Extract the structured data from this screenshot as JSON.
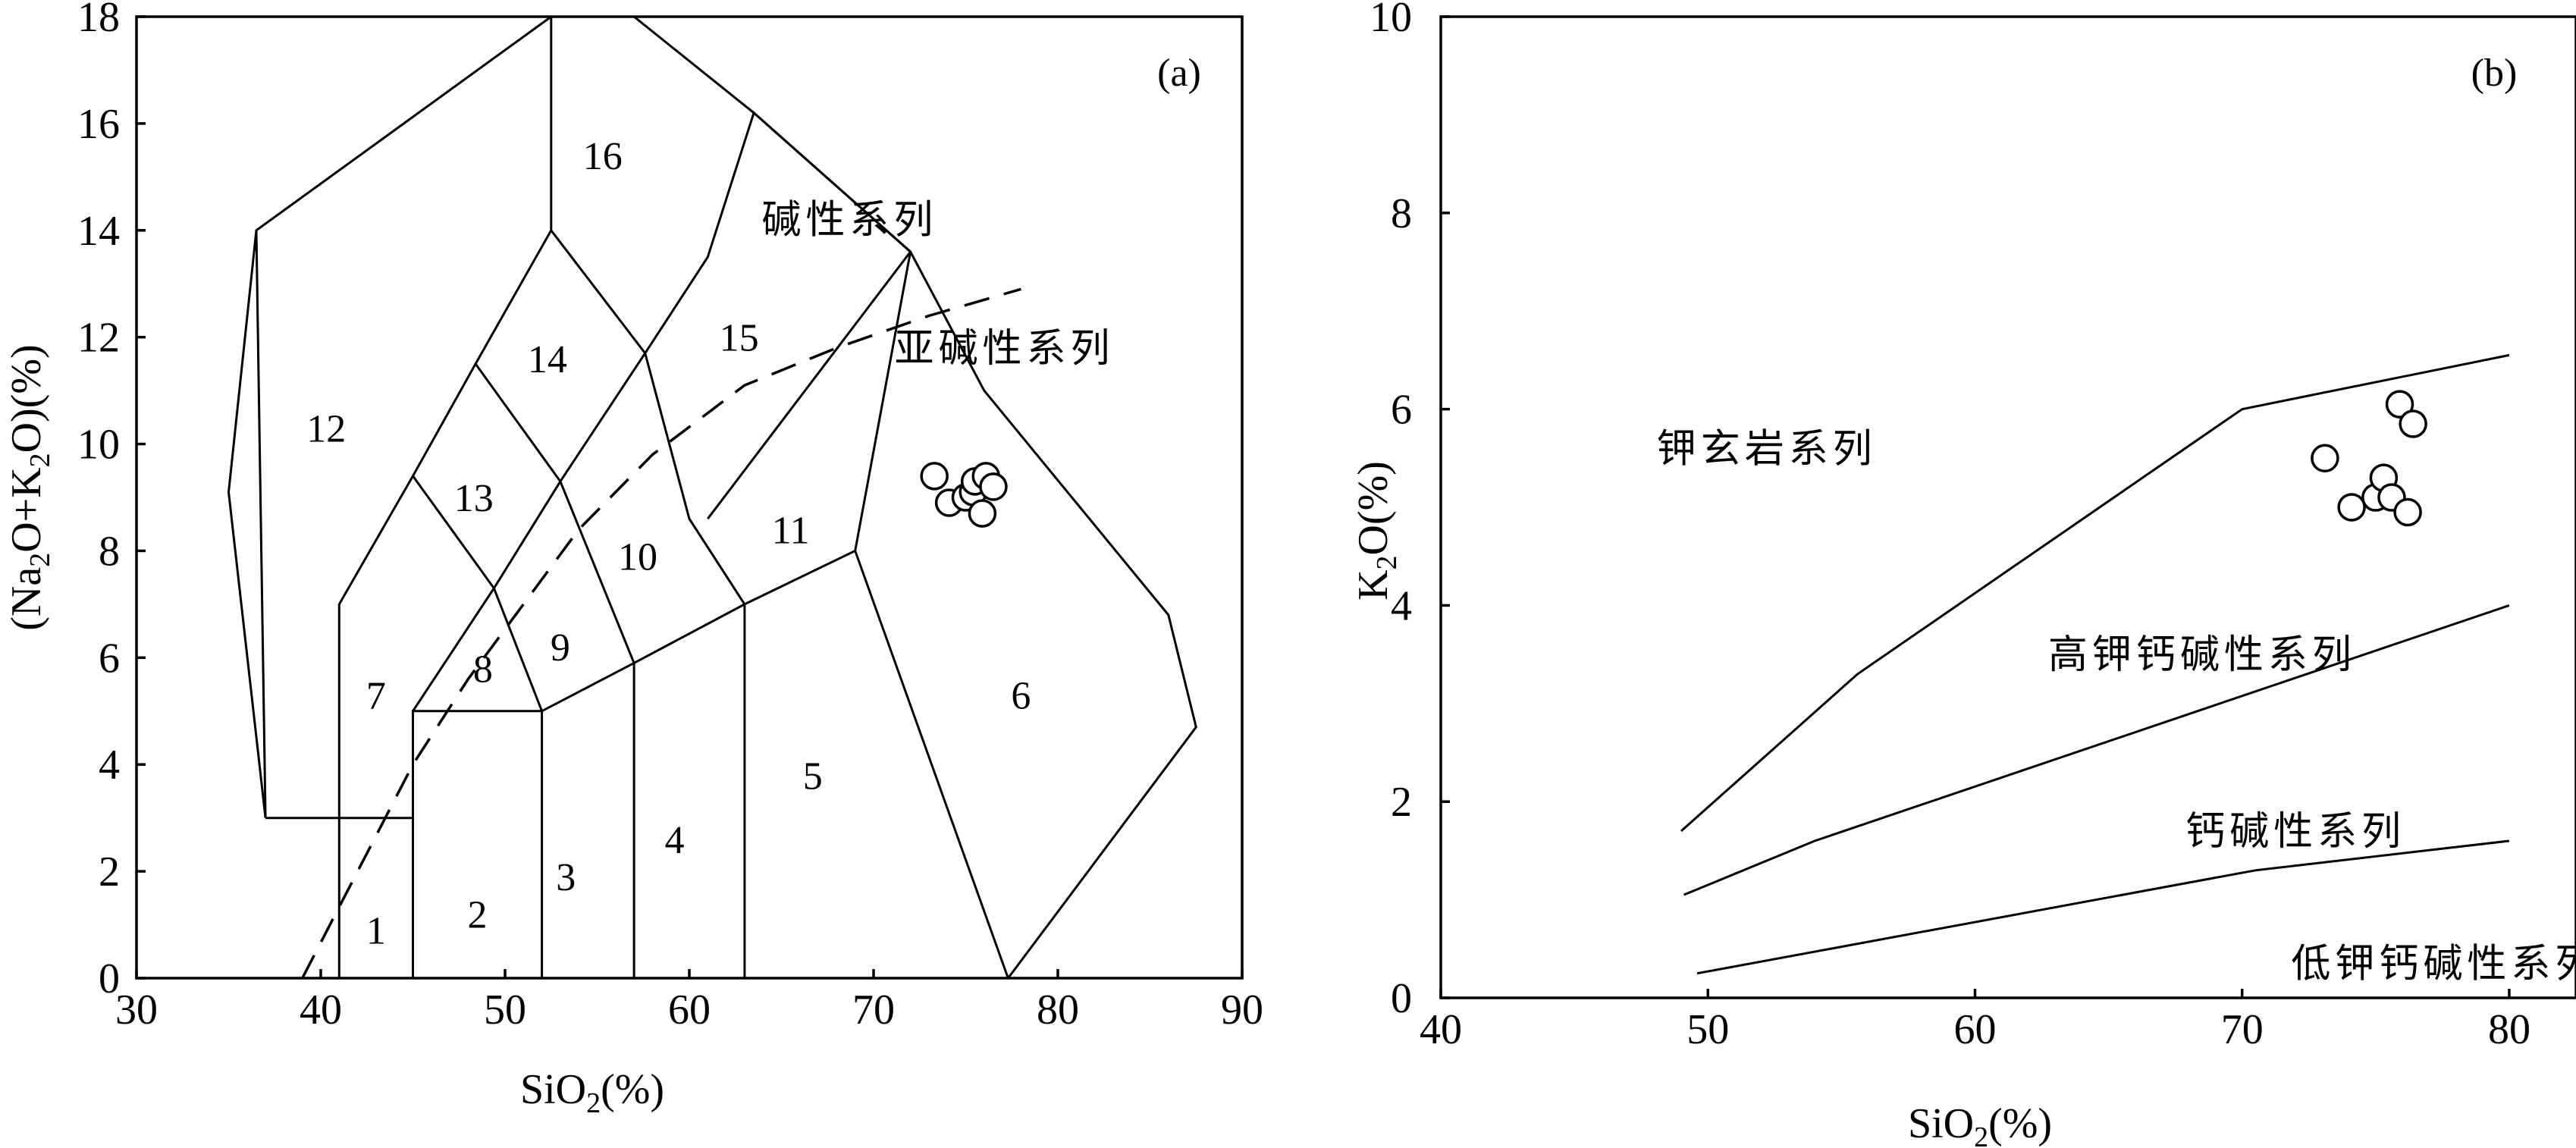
{
  "chart_data": [
    {
      "panel_label": "(a)",
      "type": "scatter",
      "xlim": [
        30,
        90
      ],
      "ylim": [
        0,
        18
      ],
      "xticks": [
        30,
        40,
        50,
        60,
        70,
        80,
        90
      ],
      "yticks": [
        0,
        2,
        4,
        6,
        8,
        10,
        12,
        14,
        16,
        18
      ],
      "xlabel": "SiO2(%)",
      "ylabel": "(Na2O+K2O)(%)",
      "series_labels": [
        "碱性系列",
        "亚碱性系列"
      ],
      "field_labels": [
        {
          "text": "1",
          "x": 43.0,
          "y": 0.9
        },
        {
          "text": "2",
          "x": 48.5,
          "y": 1.2
        },
        {
          "text": "3",
          "x": 53.3,
          "y": 1.9
        },
        {
          "text": "4",
          "x": 59.2,
          "y": 2.6
        },
        {
          "text": "5",
          "x": 66.7,
          "y": 3.8
        },
        {
          "text": "6",
          "x": 78.0,
          "y": 5.3
        },
        {
          "text": "7",
          "x": 43.0,
          "y": 5.3
        },
        {
          "text": "8",
          "x": 48.8,
          "y": 5.8
        },
        {
          "text": "9",
          "x": 53.0,
          "y": 6.2
        },
        {
          "text": "10",
          "x": 57.2,
          "y": 7.9
        },
        {
          "text": "11",
          "x": 65.5,
          "y": 8.4
        },
        {
          "text": "12",
          "x": 40.3,
          "y": 10.3
        },
        {
          "text": "13",
          "x": 48.3,
          "y": 9.0
        },
        {
          "text": "14",
          "x": 52.3,
          "y": 11.6
        },
        {
          "text": "15",
          "x": 62.7,
          "y": 12.0
        },
        {
          "text": "16",
          "x": 55.3,
          "y": 15.4
        }
      ],
      "series_label_positions": [
        {
          "text": "碱性系列",
          "x": 68.7,
          "y": 14.2
        },
        {
          "text": "亚碱性系列",
          "x": 77.1,
          "y": 11.8
        }
      ],
      "field_boundaries": [
        [
          [
            37,
            3
          ],
          [
            45,
            3
          ],
          [
            45,
            5
          ],
          [
            52,
            5
          ],
          [
            57,
            5.9
          ],
          [
            63,
            7
          ],
          [
            69,
            8
          ],
          [
            77.3,
            0
          ]
        ],
        [
          [
            41,
            0
          ],
          [
            41,
            7
          ],
          [
            45,
            9.4
          ],
          [
            48.4,
            11.5
          ],
          [
            52.5,
            14
          ],
          [
            57.6,
            11.7
          ],
          [
            61,
            13.5
          ],
          [
            63.5,
            16.2
          ],
          [
            72,
            13.6
          ],
          [
            76,
            11
          ],
          [
            86,
            6.8
          ],
          [
            87.5,
            4.7
          ],
          [
            77.3,
            0
          ]
        ],
        [
          [
            45,
            0
          ],
          [
            45,
            3
          ]
        ],
        [
          [
            52,
            0
          ],
          [
            52,
            5
          ]
        ],
        [
          [
            57,
            0
          ],
          [
            57,
            5.9
          ]
        ],
        [
          [
            63,
            0
          ],
          [
            63,
            7
          ]
        ],
        [
          [
            45,
            5
          ],
          [
            49.4,
            7.3
          ],
          [
            53,
            9.3
          ],
          [
            57.6,
            11.7
          ]
        ],
        [
          [
            45,
            9.4
          ],
          [
            49.4,
            7.3
          ],
          [
            52,
            5
          ]
        ],
        [
          [
            48.4,
            11.5
          ],
          [
            53,
            9.3
          ],
          [
            57,
            5.9
          ]
        ],
        [
          [
            52.5,
            14
          ],
          [
            52.5,
            18
          ]
        ],
        [
          [
            57.6,
            11.7
          ],
          [
            60,
            8.6
          ],
          [
            63,
            7
          ]
        ],
        [
          [
            61,
            8.6
          ],
          [
            72,
            13.6
          ],
          [
            69,
            8
          ]
        ],
        [
          [
            37,
            3
          ],
          [
            36.5,
            14
          ],
          [
            52.5,
            18
          ],
          [
            57,
            18
          ],
          [
            63.5,
            16.2
          ],
          [
            72,
            13.6
          ]
        ],
        [
          [
            36.5,
            14
          ],
          [
            35,
            9.1
          ],
          [
            37,
            3
          ]
        ]
      ],
      "alkaline_divider": [
        [
          39,
          0
        ],
        [
          42,
          2
        ],
        [
          45,
          4
        ],
        [
          48,
          5.6
        ],
        [
          51,
          7
        ],
        [
          54,
          8.4
        ],
        [
          58,
          9.8
        ],
        [
          63,
          11.1
        ],
        [
          68,
          11.8
        ],
        [
          73,
          12.4
        ],
        [
          78,
          12.9
        ]
      ],
      "points": [
        {
          "x": 73.3,
          "y": 9.4
        },
        {
          "x": 74.1,
          "y": 8.9
        },
        {
          "x": 75.0,
          "y": 9.0
        },
        {
          "x": 75.4,
          "y": 9.1
        },
        {
          "x": 75.5,
          "y": 9.3
        },
        {
          "x": 75.9,
          "y": 8.7
        },
        {
          "x": 76.1,
          "y": 9.4
        },
        {
          "x": 76.5,
          "y": 9.2
        }
      ]
    },
    {
      "panel_label": "(b)",
      "type": "scatter",
      "xlim": [
        40,
        82.5
      ],
      "ylim": [
        0,
        10
      ],
      "xticks": [
        40,
        50,
        60,
        70,
        80
      ],
      "yticks": [
        0,
        2,
        4,
        6,
        8,
        10
      ],
      "xlabel": "SiO2(%)",
      "ylabel": "K2O(%)",
      "series_labels": [
        "钾玄岩系列",
        "高钾钙碱性系列",
        "钙碱性系列",
        "低钾钙碱性系列"
      ],
      "series_label_positions": [
        {
          "text": "钾玄岩系列",
          "x": 52.2,
          "y": 5.6
        },
        {
          "text": "高钾钙碱性系列",
          "x": 68.5,
          "y": 3.5
        },
        {
          "text": "钙碱性系列",
          "x": 72.0,
          "y": 1.7
        },
        {
          "text": "低钾钙碱性系列",
          "x": 77.6,
          "y": 0.35
        }
      ],
      "boundaries": [
        [
          [
            49,
            1.7
          ],
          [
            55.6,
            3.3
          ],
          [
            70,
            6
          ],
          [
            80,
            6.55
          ]
        ],
        [
          [
            49.1,
            1.05
          ],
          [
            54,
            1.6
          ],
          [
            80,
            4.0
          ]
        ],
        [
          [
            49.6,
            0.25
          ],
          [
            70.5,
            1.3
          ],
          [
            80,
            1.6
          ]
        ]
      ],
      "points": [
        {
          "x": 73.1,
          "y": 5.5
        },
        {
          "x": 74.1,
          "y": 5.0
        },
        {
          "x": 75.0,
          "y": 5.1
        },
        {
          "x": 75.3,
          "y": 5.3
        },
        {
          "x": 75.6,
          "y": 5.1
        },
        {
          "x": 75.9,
          "y": 6.05
        },
        {
          "x": 76.2,
          "y": 4.95
        },
        {
          "x": 76.4,
          "y": 5.85
        }
      ]
    }
  ]
}
